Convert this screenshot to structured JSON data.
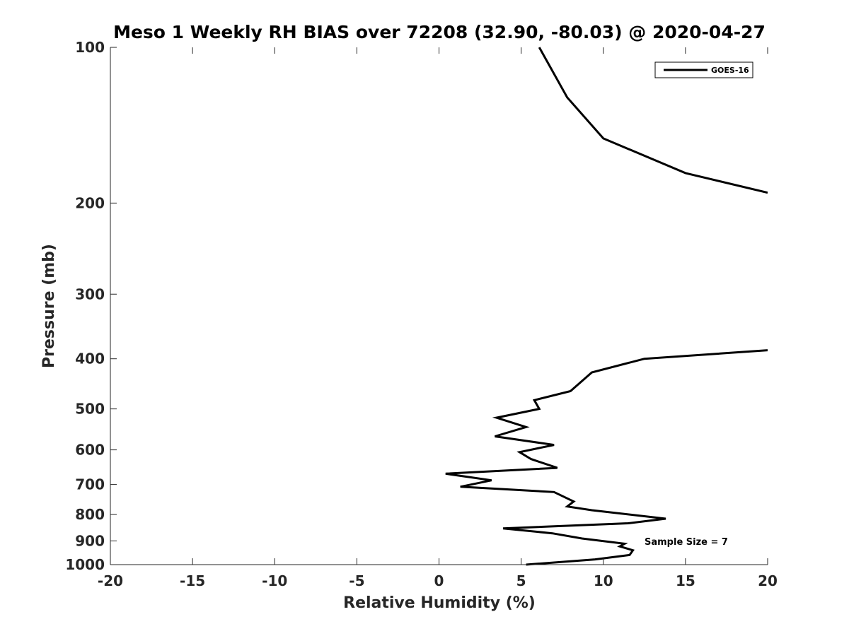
{
  "chart_data": {
    "type": "line",
    "title": "Meso 1 Weekly RH BIAS over 72208 (32.90, -80.03) @ 2020-04-27",
    "xlabel": "Relative Humidity (%)",
    "ylabel": "Pressure (mb)",
    "xlim": [
      -20,
      20
    ],
    "ylim": [
      1000,
      100
    ],
    "yscale": "log",
    "y_reversed": true,
    "x_ticks": [
      -20,
      -15,
      -10,
      -5,
      0,
      5,
      10,
      15,
      20
    ],
    "y_ticks": [
      100,
      200,
      300,
      400,
      500,
      600,
      700,
      800,
      900,
      1000
    ],
    "grid": false,
    "legend_position": "top-right",
    "annotation": "Sample Size = 7",
    "series": [
      {
        "name": "GOES-16",
        "color": "#000000",
        "segments": [
          [
            {
              "x": 6.1,
              "y": 100
            },
            {
              "x": 7.8,
              "y": 125
            },
            {
              "x": 10.0,
              "y": 150
            },
            {
              "x": 15.0,
              "y": 175
            },
            {
              "x": 20.0,
              "y": 191
            }
          ],
          [
            {
              "x": 20.0,
              "y": 385
            },
            {
              "x": 12.5,
              "y": 400
            },
            {
              "x": 9.3,
              "y": 425
            },
            {
              "x": 8.0,
              "y": 462
            },
            {
              "x": 5.8,
              "y": 481
            },
            {
              "x": 6.1,
              "y": 500
            },
            {
              "x": 3.5,
              "y": 520
            },
            {
              "x": 5.3,
              "y": 542
            },
            {
              "x": 3.4,
              "y": 565
            },
            {
              "x": 7.0,
              "y": 587
            },
            {
              "x": 4.9,
              "y": 606
            },
            {
              "x": 5.6,
              "y": 625
            },
            {
              "x": 7.2,
              "y": 650
            },
            {
              "x": 0.4,
              "y": 667
            },
            {
              "x": 3.2,
              "y": 687
            },
            {
              "x": 1.3,
              "y": 707
            },
            {
              "x": 7.0,
              "y": 724
            },
            {
              "x": 8.2,
              "y": 755
            },
            {
              "x": 7.8,
              "y": 772
            },
            {
              "x": 9.3,
              "y": 785
            },
            {
              "x": 13.8,
              "y": 815
            },
            {
              "x": 11.5,
              "y": 832
            },
            {
              "x": 3.9,
              "y": 851
            },
            {
              "x": 6.9,
              "y": 870
            },
            {
              "x": 8.7,
              "y": 890
            },
            {
              "x": 11.3,
              "y": 911
            },
            {
              "x": 11.0,
              "y": 922
            },
            {
              "x": 11.8,
              "y": 938
            },
            {
              "x": 11.6,
              "y": 958
            },
            {
              "x": 9.5,
              "y": 977
            },
            {
              "x": 5.3,
              "y": 1000
            }
          ]
        ]
      }
    ]
  }
}
